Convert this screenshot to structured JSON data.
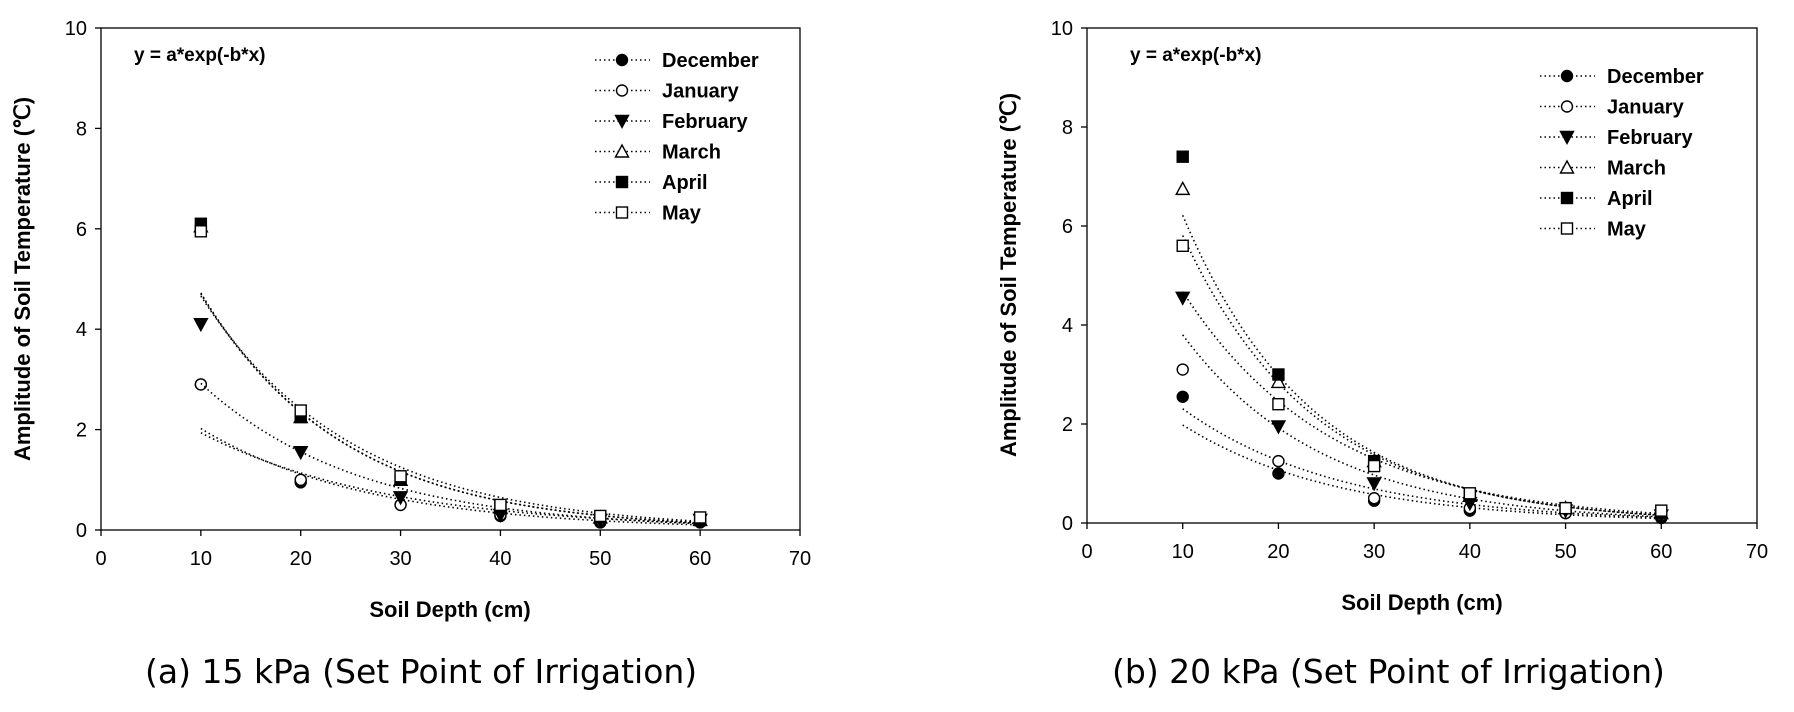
{
  "chart_data": [
    {
      "type": "scatter",
      "xlabel": "Soil Depth (cm)",
      "ylabel": "Amplitude of Soil Temperature (℃)",
      "xlim": [
        0,
        70
      ],
      "ylim": [
        0,
        10
      ],
      "xticks": [
        "0",
        "10",
        "20",
        "30",
        "40",
        "50",
        "60",
        "70"
      ],
      "yticks": [
        "0",
        "2",
        "4",
        "6",
        "8",
        "10"
      ],
      "annotation": "y = a*exp(-b*x)",
      "legend_position": "top-right",
      "grid": false,
      "x": [
        10,
        20,
        30,
        40,
        50,
        60
      ],
      "series": [
        {
          "name": "December",
          "marker": "circle-filled",
          "values": [
            2.9,
            0.95,
            0.5,
            0.28,
            0.15,
            0.15
          ]
        },
        {
          "name": "January",
          "marker": "circle-open",
          "values": [
            2.9,
            1.0,
            0.5,
            0.3,
            0.2,
            0.2
          ]
        },
        {
          "name": "February",
          "marker": "triangle-down-filled",
          "values": [
            4.1,
            1.55,
            0.65,
            0.3,
            0.2,
            0.2
          ]
        },
        {
          "name": "March",
          "marker": "triangle-up-open",
          "values": [
            6.05,
            2.25,
            1.0,
            0.45,
            0.25,
            0.2
          ]
        },
        {
          "name": "April",
          "marker": "square-filled",
          "values": [
            6.1,
            2.25,
            1.0,
            0.45,
            0.25,
            0.2
          ]
        },
        {
          "name": "May",
          "marker": "square-open",
          "values": [
            5.95,
            2.38,
            1.07,
            0.5,
            0.28,
            0.25
          ]
        }
      ]
    },
    {
      "type": "scatter",
      "xlabel": "Soil Depth (cm)",
      "ylabel": "Amplitude of Soil Temperature (℃)",
      "xlim": [
        0,
        70
      ],
      "ylim": [
        0,
        10
      ],
      "xticks": [
        "0",
        "10",
        "20",
        "30",
        "40",
        "50",
        "60",
        "70"
      ],
      "yticks": [
        "0",
        "2",
        "4",
        "6",
        "8",
        "10"
      ],
      "annotation": "y = a*exp(-b*x)",
      "legend_position": "top-right",
      "grid": false,
      "x": [
        10,
        20,
        30,
        40,
        50,
        60
      ],
      "series": [
        {
          "name": "December",
          "marker": "circle-filled",
          "values": [
            2.55,
            1.0,
            0.45,
            0.25,
            0.2,
            0.1
          ]
        },
        {
          "name": "January",
          "marker": "circle-open",
          "values": [
            3.1,
            1.25,
            0.5,
            0.3,
            0.2,
            0.15
          ]
        },
        {
          "name": "February",
          "marker": "triangle-down-filled",
          "values": [
            4.55,
            1.95,
            0.8,
            0.4,
            0.25,
            0.15
          ]
        },
        {
          "name": "March",
          "marker": "triangle-up-open",
          "values": [
            6.75,
            2.85,
            1.25,
            0.55,
            0.3,
            0.2
          ]
        },
        {
          "name": "April",
          "marker": "square-filled",
          "values": [
            7.4,
            3.0,
            1.25,
            0.55,
            0.3,
            0.2
          ]
        },
        {
          "name": "May",
          "marker": "square-open",
          "values": [
            5.6,
            2.4,
            1.15,
            0.6,
            0.3,
            0.25
          ]
        }
      ]
    }
  ],
  "captions": {
    "a": "(a) 15 kPa (Set Point of Irrigation)",
    "b": "(b) 20 kPa (Set Point of Irrigation)"
  }
}
